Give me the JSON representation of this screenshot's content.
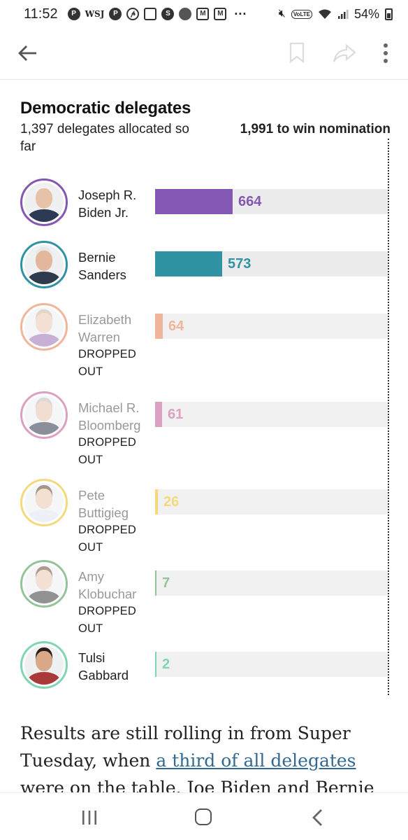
{
  "status_bar": {
    "time": "11:52",
    "notification_icons": [
      "pinterest-icon",
      "wsj-icon",
      "p-icon",
      "link-icon",
      "instagram-icon",
      "s-icon",
      "chrome-icon",
      "gmail-icon",
      "gmail-icon",
      "more-dots-icon"
    ],
    "wsj_label": "WSJ",
    "more": "···",
    "volte": "VoLTE",
    "battery": "54%"
  },
  "toolbar": {
    "back_icon": "arrow-left-icon",
    "bookmark_icon": "bookmark-icon",
    "share_icon": "share-icon",
    "more_icon": "overflow-menu-icon"
  },
  "chart": {
    "title": "Democratic delegates",
    "subtitle": "1,397 delegates allocated so far",
    "win_label": "1,991 to win nomination"
  },
  "chart_data": {
    "type": "bar",
    "orientation": "horizontal",
    "title": "Democratic delegates",
    "xlim": [
      0,
      1991
    ],
    "threshold": 1991,
    "categories": [
      "Joseph R. Biden Jr.",
      "Bernie Sanders",
      "Elizabeth Warren",
      "Michael R. Bloomberg",
      "Pete Buttigieg",
      "Amy Klobuchar",
      "Tulsi Gabbard"
    ],
    "values": [
      664,
      573,
      64,
      61,
      26,
      7,
      2
    ]
  },
  "candidates": [
    {
      "name_line1": "Joseph R.",
      "name_line2": "Biden Jr.",
      "delegates": "664",
      "value": 664,
      "color": "#8457b3",
      "dropped": "",
      "skin": "#e8c2a8",
      "hair": "#f2f2f2",
      "suit": "#2c3a55"
    },
    {
      "name_line1": "Bernie",
      "name_line2": "Sanders",
      "delegates": "573",
      "value": 573,
      "color": "#2f93a4",
      "dropped": "",
      "skin": "#e3b79c",
      "hair": "#e8e8e8",
      "suit": "#2f3a4c"
    },
    {
      "name_line1": "Elizabeth",
      "name_line2": "Warren",
      "delegates": "64",
      "value": 64,
      "color": "#f0b59a",
      "dropped": "DROPPED OUT",
      "skin": "#ecc8b4",
      "hair": "#c9b79a",
      "suit": "#9a6fb6"
    },
    {
      "name_line1": "Michael R.",
      "name_line2": "Bloomberg",
      "delegates": "61",
      "value": 61,
      "color": "#dca0c2",
      "dropped": "DROPPED OUT",
      "skin": "#e7c4ad",
      "hair": "#bdbdbd",
      "suit": "#2b3446"
    },
    {
      "name_line1": "Pete",
      "name_line2": "Buttigieg",
      "delegates": "26",
      "value": 26,
      "color": "#f4d97e",
      "dropped": "DROPPED OUT",
      "skin": "#ecc8ab",
      "hair": "#5a4030",
      "suit": "#dfe7f2"
    },
    {
      "name_line1": "Amy",
      "name_line2": "Klobuchar",
      "delegates": "7",
      "value": 7,
      "color": "#94c49a",
      "dropped": "DROPPED OUT",
      "skin": "#eac9b3",
      "hair": "#6b4a33",
      "suit": "#3a3a3a"
    },
    {
      "name_line1": "Tulsi",
      "name_line2": "Gabbard",
      "delegates": "2",
      "value": 2,
      "color": "#7fd6b0",
      "dropped": "",
      "skin": "#d9a888",
      "hair": "#2b1d14",
      "suit": "#a83a3a"
    }
  ],
  "article": {
    "text_before": "Results are still rolling in from Super Tuesday, when ",
    "link_text": "a third of all delegates",
    "text_after": " were on the table. Joe Biden and Bernie"
  },
  "navbar": {
    "recent_icon": "recent-apps-icon",
    "home_icon": "home-icon",
    "back_icon": "nav-back-icon"
  }
}
